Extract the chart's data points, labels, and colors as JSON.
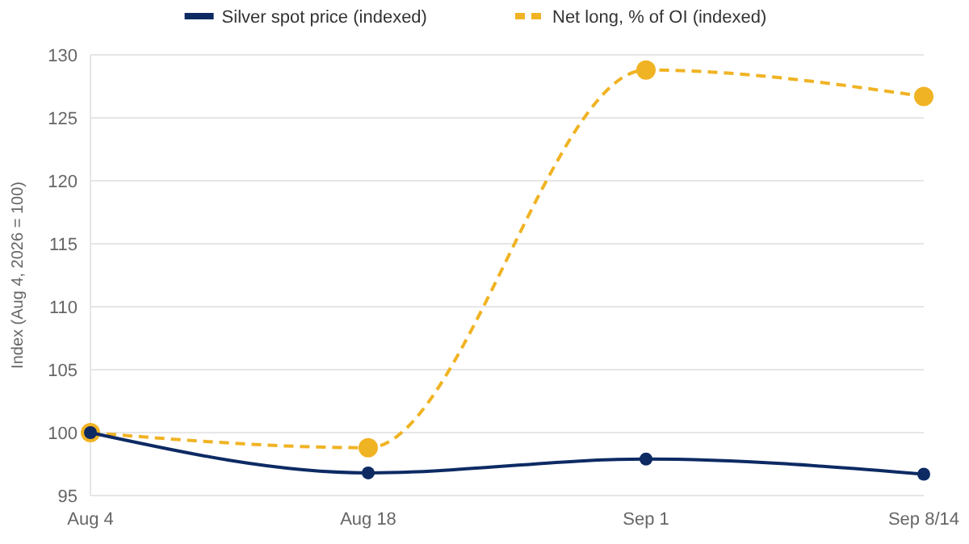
{
  "chart_data": {
    "type": "line",
    "ylabel": "Index (Aug 4, 2026 = 100)",
    "categories": [
      "Aug 4",
      "Aug 18",
      "Sep 1",
      "Sep 8/14"
    ],
    "series": [
      {
        "name": "Silver spot price (indexed)",
        "color": "#0d2a63",
        "values": [
          100,
          96.8,
          97.9,
          96.7
        ],
        "line_style": "solid"
      },
      {
        "name": "Net long, % of OI (indexed)",
        "color": "#f0b323",
        "values": [
          100,
          98.8,
          128.8,
          126.7
        ],
        "line_style": "dashed"
      }
    ],
    "ylim": [
      95,
      130
    ],
    "yticks": [
      95,
      100,
      105,
      110,
      115,
      120,
      125,
      130
    ],
    "grid": "y",
    "legend": "top",
    "marker": "circle"
  }
}
